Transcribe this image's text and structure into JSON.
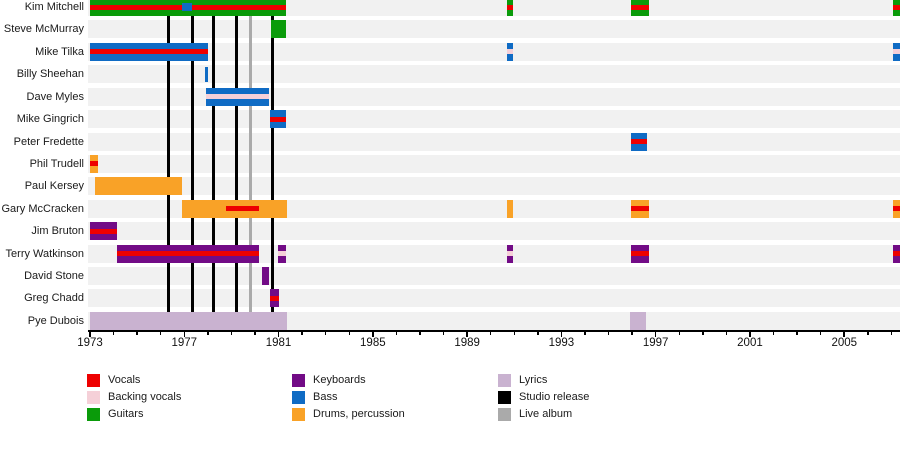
{
  "chart_data": {
    "type": "gantt-timeline",
    "description": "Band membership timeline: instruments/roles per member over years, with album release markers",
    "colors": {
      "vocals": "#ee0000",
      "backing_vocals": "#f5d0d8",
      "guitars": "#0a9b0a",
      "keyboards": "#720b86",
      "bass": "#0f6bc4",
      "drums": "#f9a227",
      "lyrics": "#c9b2d0",
      "studio_release": "#000000",
      "live_album": "#aaaaaa",
      "row_band": "#f1f1f1"
    },
    "axis": {
      "start": 1973,
      "end": 2007,
      "minor_tick_interval": 1,
      "major_tick_interval": 4,
      "major_tick_labels": [
        "1973",
        "1977",
        "1981",
        "1985",
        "1989",
        "1993",
        "1997",
        "2001",
        "2005"
      ]
    },
    "releases": [
      {
        "year": 1976.35,
        "type": "studio_release"
      },
      {
        "year": 1977.33,
        "type": "studio_release"
      },
      {
        "year": 1978.26,
        "type": "studio_release"
      },
      {
        "year": 1979.21,
        "type": "studio_release"
      },
      {
        "year": 1979.79,
        "type": "live_album"
      },
      {
        "year": 1980.76,
        "type": "studio_release"
      }
    ],
    "members": [
      {
        "name": "Kim Mitchell",
        "bars": [
          {
            "from": 1973.0,
            "to": 1981.3,
            "role": "guitars",
            "stripe": "vocals",
            "overlays": [
              {
                "from": 1976.9,
                "to": 1977.33,
                "role": "bass"
              }
            ]
          },
          {
            "from": 1990.7,
            "to": 1990.95,
            "role": "guitars",
            "stripe": "vocals"
          },
          {
            "from": 1995.95,
            "to": 1996.7,
            "role": "guitars",
            "stripe": "vocals"
          },
          {
            "from": 2007.05,
            "to": 2007.45,
            "role": "guitars",
            "stripe": "vocals"
          }
        ]
      },
      {
        "name": "Steve McMurray",
        "bars": [
          {
            "from": 1980.68,
            "to": 1981.3,
            "role": "guitars"
          }
        ]
      },
      {
        "name": "Mike Tilka",
        "bars": [
          {
            "from": 1973.0,
            "to": 1978.0,
            "role": "bass",
            "stripe": "vocals"
          },
          {
            "from": 1990.7,
            "to": 1990.95,
            "role": "bass",
            "stripe": "backing_vocals"
          },
          {
            "from": 2007.05,
            "to": 2007.45,
            "role": "bass",
            "stripe": "backing_vocals"
          }
        ]
      },
      {
        "name": "Billy Sheehan",
        "bars": [
          {
            "from": 1977.88,
            "to": 1977.99,
            "role": "bass",
            "short": true
          }
        ]
      },
      {
        "name": "Dave Myles",
        "bars": [
          {
            "from": 1977.92,
            "to": 1980.6,
            "role": "bass",
            "stripe": "backing_vocals"
          }
        ]
      },
      {
        "name": "Mike Gingrich",
        "bars": [
          {
            "from": 1980.65,
            "to": 1981.3,
            "role": "bass",
            "stripe": "vocals"
          }
        ]
      },
      {
        "name": "Peter Fredette",
        "bars": [
          {
            "from": 1995.95,
            "to": 1996.65,
            "role": "bass",
            "stripe": "vocals"
          }
        ]
      },
      {
        "name": "Phil Trudell",
        "bars": [
          {
            "from": 1973.0,
            "to": 1973.35,
            "role": "drums",
            "stripe": "vocals"
          }
        ]
      },
      {
        "name": "Paul Kersey",
        "bars": [
          {
            "from": 1973.2,
            "to": 1976.9,
            "role": "drums"
          }
        ]
      },
      {
        "name": "Gary McCracken",
        "bars": [
          {
            "from": 1976.9,
            "to": 1981.35,
            "role": "drums",
            "stripe": "vocals",
            "stripe_from": 1978.75,
            "stripe_to": 1980.15
          },
          {
            "from": 1990.7,
            "to": 1990.95,
            "role": "drums"
          },
          {
            "from": 1995.95,
            "to": 1996.7,
            "role": "drums",
            "stripe": "vocals"
          },
          {
            "from": 2007.05,
            "to": 2007.45,
            "role": "drums",
            "stripe": "vocals"
          }
        ]
      },
      {
        "name": "Jim Bruton",
        "bars": [
          {
            "from": 1973.0,
            "to": 1974.15,
            "role": "keyboards",
            "stripe": "vocals"
          }
        ]
      },
      {
        "name": "Terry Watkinson",
        "bars": [
          {
            "from": 1974.15,
            "to": 1980.15,
            "role": "keyboards",
            "stripe": "vocals"
          },
          {
            "from": 1980.98,
            "to": 1981.3,
            "role": "keyboards",
            "stripe": "backing_vocals"
          },
          {
            "from": 1990.7,
            "to": 1990.95,
            "role": "keyboards",
            "stripe": "backing_vocals"
          },
          {
            "from": 1995.95,
            "to": 1996.7,
            "role": "keyboards",
            "stripe": "vocals"
          },
          {
            "from": 2007.05,
            "to": 2007.45,
            "role": "keyboards",
            "stripe": "vocals"
          }
        ]
      },
      {
        "name": "David Stone",
        "bars": [
          {
            "from": 1980.3,
            "to": 1980.6,
            "role": "keyboards"
          }
        ]
      },
      {
        "name": "Greg Chadd",
        "bars": [
          {
            "from": 1980.65,
            "to": 1981.0,
            "role": "keyboards",
            "stripe": "vocals"
          }
        ]
      },
      {
        "name": "Pye Dubois",
        "bars": [
          {
            "from": 1973.0,
            "to": 1981.35,
            "role": "lyrics"
          },
          {
            "from": 1995.9,
            "to": 1996.6,
            "role": "lyrics"
          }
        ]
      }
    ]
  },
  "legend": {
    "columns": [
      {
        "items": [
          {
            "label": "Vocals",
            "role": "vocals"
          },
          {
            "label": "Backing vocals",
            "role": "backing_vocals"
          },
          {
            "label": "Guitars",
            "role": "guitars"
          }
        ]
      },
      {
        "items": [
          {
            "label": "Keyboards",
            "role": "keyboards"
          },
          {
            "label": "Bass",
            "role": "bass"
          },
          {
            "label": "Drums, percussion",
            "role": "drums"
          }
        ]
      },
      {
        "items": [
          {
            "label": "Lyrics",
            "role": "lyrics"
          },
          {
            "label": "Studio release",
            "role": "studio_release"
          },
          {
            "label": "Live album",
            "role": "live_album"
          }
        ]
      }
    ]
  }
}
